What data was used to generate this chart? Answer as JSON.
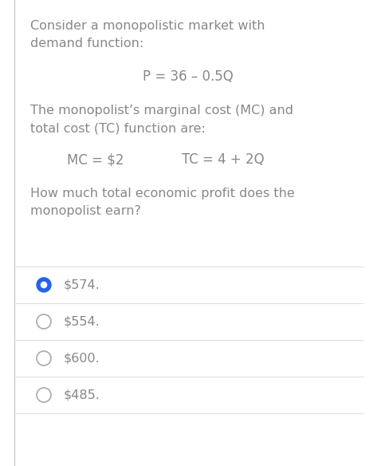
{
  "background_color": "#ffffff",
  "left_border_color": "#cccccc",
  "text_color": "#888888",
  "title_lines": [
    "Consider a monopolistic market with",
    "demand function:"
  ],
  "equation1": "P = 36 – 0.5Q",
  "paragraph2_lines": [
    "The monopolist’s marginal cost (MC) and",
    "total cost (TC) function are:"
  ],
  "equation2_left": "MC = $2",
  "equation2_right": "TC = 4 + 2Q",
  "question_lines": [
    "How much total economic profit does the",
    "monopolist earn?"
  ],
  "options": [
    {
      "label": "$574.",
      "selected": true
    },
    {
      "label": "$554.",
      "selected": false
    },
    {
      "label": "$600.",
      "selected": false
    },
    {
      "label": "$485.",
      "selected": false
    }
  ],
  "selected_color": "#2563EB",
  "unselected_color": "#aaaaaa",
  "divider_color": "#e0e0e0",
  "font_size_body": 11.5,
  "font_size_equation": 12.0
}
